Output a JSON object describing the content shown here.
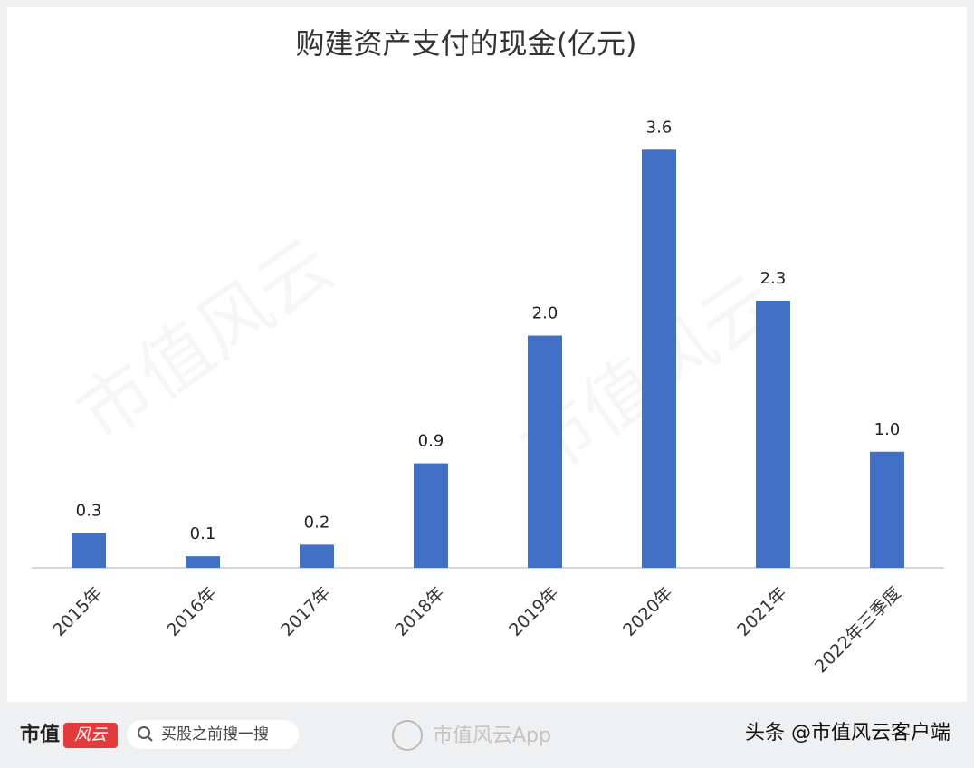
{
  "chart_data": {
    "type": "bar",
    "title": "购建资产支付的现金(亿元)",
    "categories": [
      "2015年",
      "2016年",
      "2017年",
      "2018年",
      "2019年",
      "2020年",
      "2021年",
      "2022年三季度"
    ],
    "values": [
      0.3,
      0.1,
      0.2,
      0.9,
      2.0,
      3.6,
      2.3,
      1.0
    ],
    "value_labels": [
      "0.3",
      "0.1",
      "0.2",
      "0.9",
      "2.0",
      "3.6",
      "2.3",
      "1.0"
    ],
    "color": "#4170c6",
    "ylim": [
      0,
      4
    ],
    "grid": false
  },
  "watermark": "市值风云",
  "footer": {
    "logo": "市值",
    "logo_badge": "风云",
    "search": "买股之前搜一搜",
    "center": "市值风云App",
    "right": "头条 @市值风云客户端"
  }
}
